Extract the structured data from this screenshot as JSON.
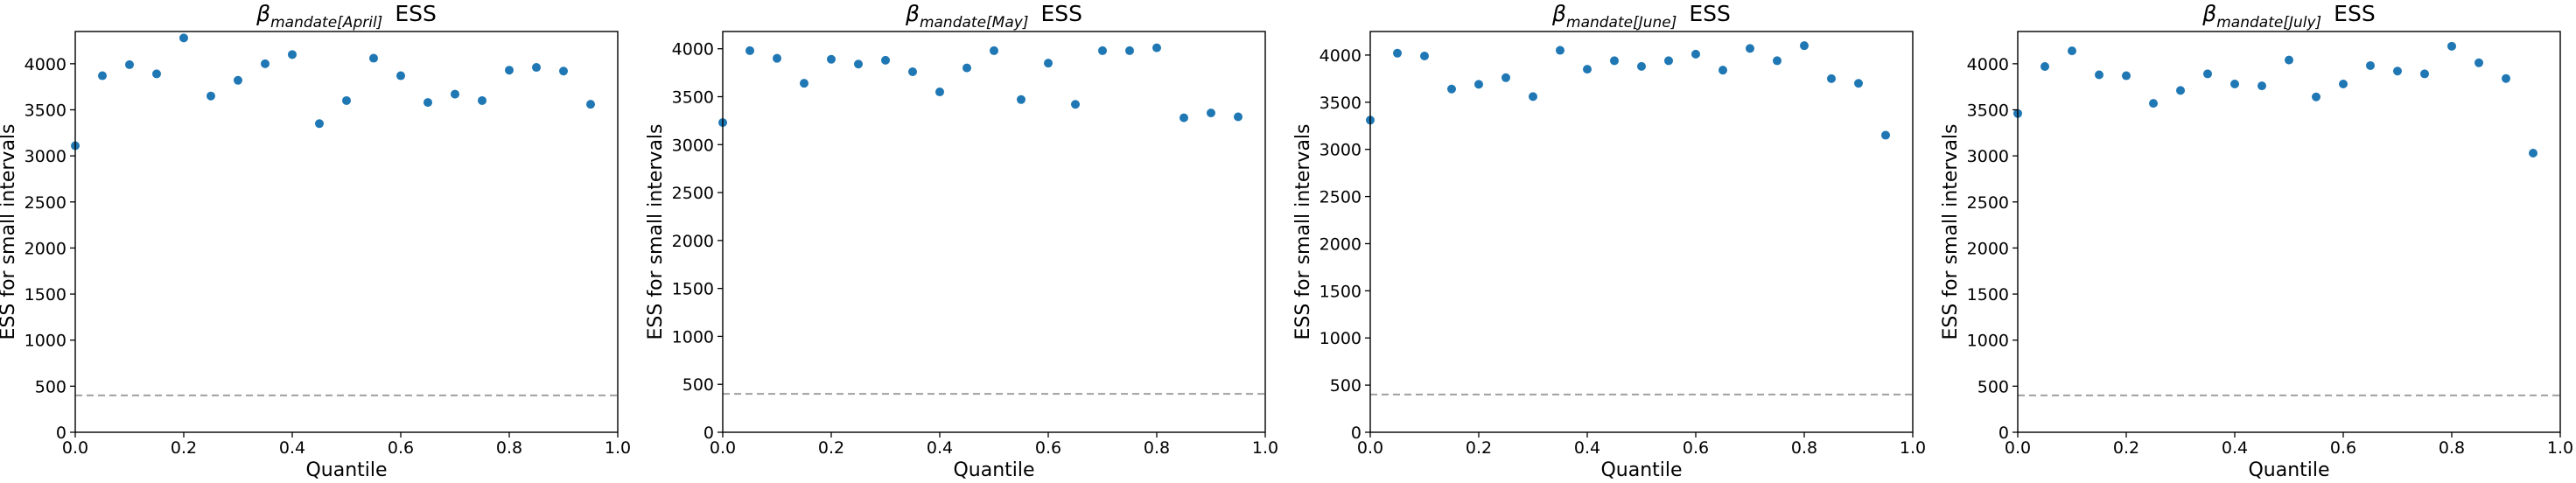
{
  "chart_data": [
    {
      "type": "scatter",
      "title_symbol": "β",
      "title_subscript": "mandate[April]",
      "title_suffix": "ESS",
      "xlabel": "Quantile",
      "ylabel": "ESS for small intervals",
      "xlim": [
        0.0,
        1.0
      ],
      "ylim": [
        0,
        4350
      ],
      "xticks": [
        "0.0",
        "0.2",
        "0.4",
        "0.6",
        "0.8",
        "1.0"
      ],
      "yticks": [
        "0",
        "500",
        "1000",
        "1500",
        "2000",
        "2500",
        "3000",
        "3500",
        "4000"
      ],
      "reference_line": 400,
      "x": [
        0.0,
        0.05,
        0.1,
        0.15,
        0.2,
        0.25,
        0.3,
        0.35,
        0.4,
        0.45,
        0.5,
        0.55,
        0.6,
        0.65,
        0.7,
        0.75,
        0.8,
        0.85,
        0.9,
        0.95
      ],
      "y": [
        3110,
        3870,
        3990,
        3890,
        4280,
        3650,
        3820,
        4000,
        4100,
        3350,
        3600,
        4060,
        3870,
        3580,
        3670,
        3600,
        3930,
        3960,
        3920,
        3560
      ]
    },
    {
      "type": "scatter",
      "title_symbol": "β",
      "title_subscript": "mandate[May]",
      "title_suffix": "ESS",
      "xlabel": "Quantile",
      "ylabel": "ESS for small intervals",
      "xlim": [
        0.0,
        1.0
      ],
      "ylim": [
        0,
        4180
      ],
      "xticks": [
        "0.0",
        "0.2",
        "0.4",
        "0.6",
        "0.8",
        "1.0"
      ],
      "yticks": [
        "0",
        "500",
        "1000",
        "1500",
        "2000",
        "2500",
        "3000",
        "3500",
        "4000"
      ],
      "reference_line": 400,
      "x": [
        0.0,
        0.05,
        0.1,
        0.15,
        0.2,
        0.25,
        0.3,
        0.35,
        0.4,
        0.45,
        0.5,
        0.55,
        0.6,
        0.65,
        0.7,
        0.75,
        0.8,
        0.85,
        0.9,
        0.95
      ],
      "y": [
        3230,
        3980,
        3900,
        3640,
        3890,
        3840,
        3880,
        3760,
        3550,
        3800,
        3980,
        3470,
        3850,
        3420,
        3980,
        3980,
        4010,
        3280,
        3330,
        3290
      ]
    },
    {
      "type": "scatter",
      "title_symbol": "β",
      "title_subscript": "mandate[June]",
      "title_suffix": "ESS",
      "xlabel": "Quantile",
      "ylabel": "ESS for small intervals",
      "xlim": [
        0.0,
        1.0
      ],
      "ylim": [
        0,
        4250
      ],
      "xticks": [
        "0.0",
        "0.2",
        "0.4",
        "0.6",
        "0.8",
        "1.0"
      ],
      "yticks": [
        "0",
        "500",
        "1000",
        "1500",
        "2000",
        "2500",
        "3000",
        "3500",
        "4000"
      ],
      "reference_line": 400,
      "x": [
        0.0,
        0.05,
        0.1,
        0.15,
        0.2,
        0.25,
        0.3,
        0.35,
        0.4,
        0.45,
        0.5,
        0.55,
        0.6,
        0.65,
        0.7,
        0.75,
        0.8,
        0.85,
        0.9,
        0.95
      ],
      "y": [
        3310,
        4020,
        3990,
        3640,
        3690,
        3760,
        3560,
        4050,
        3850,
        3940,
        3880,
        3940,
        4010,
        3840,
        4070,
        3940,
        4100,
        3750,
        3700,
        3150
      ]
    },
    {
      "type": "scatter",
      "title_symbol": "β",
      "title_subscript": "mandate[July]",
      "title_suffix": "ESS",
      "xlabel": "Quantile",
      "ylabel": "ESS for small intervals",
      "xlim": [
        0.0,
        1.0
      ],
      "ylim": [
        0,
        4350
      ],
      "xticks": [
        "0.0",
        "0.2",
        "0.4",
        "0.6",
        "0.8",
        "1.0"
      ],
      "yticks": [
        "0",
        "500",
        "1000",
        "1500",
        "2000",
        "2500",
        "3000",
        "3500",
        "4000"
      ],
      "reference_line": 400,
      "x": [
        0.0,
        0.05,
        0.1,
        0.15,
        0.2,
        0.25,
        0.3,
        0.35,
        0.4,
        0.45,
        0.5,
        0.55,
        0.6,
        0.65,
        0.7,
        0.75,
        0.8,
        0.85,
        0.9,
        0.95
      ],
      "y": [
        3460,
        3970,
        4140,
        3880,
        3870,
        3570,
        3710,
        3890,
        3780,
        3760,
        4040,
        3640,
        3780,
        3980,
        3920,
        3890,
        4190,
        4010,
        3840,
        3030
      ]
    }
  ],
  "colors": {
    "marker": "#1f77b4",
    "reference_line": "#a0a0a0",
    "axes": "#000000"
  }
}
